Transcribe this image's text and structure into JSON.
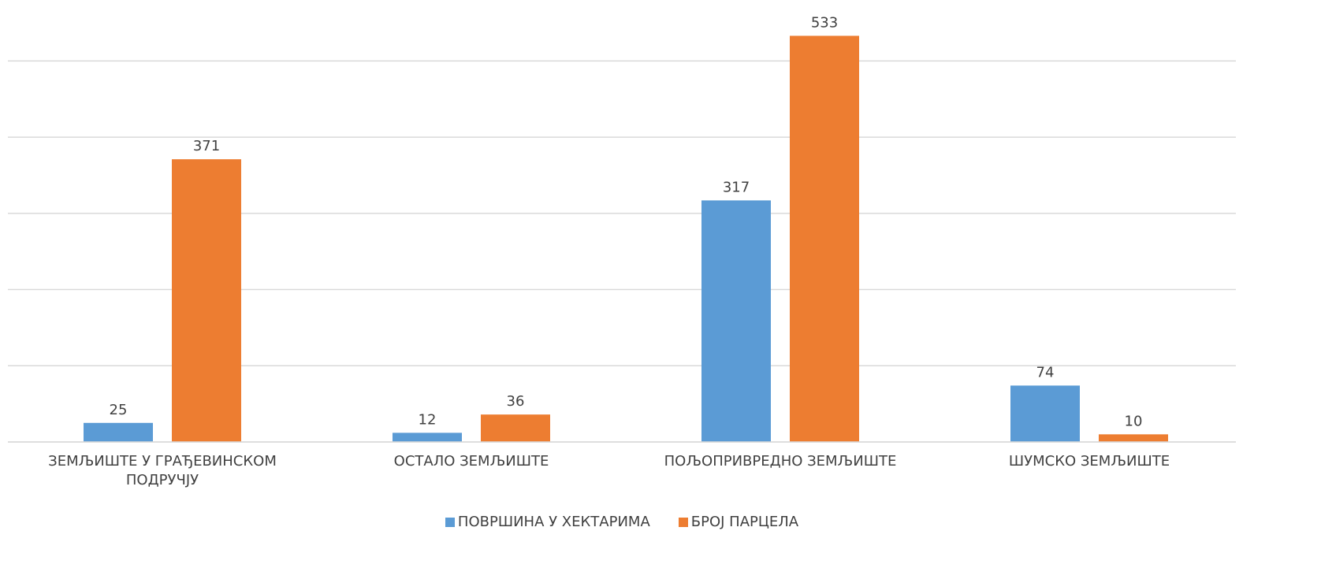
{
  "chart_data": {
    "type": "bar",
    "categories": [
      "ЗЕМЉИШТЕ У ГРАЂЕВИНСКОМ ПОДРУЧЈУ",
      "ОСТАЛО ЗЕМЉИШТЕ",
      "ПОЉОПРИВРЕДНО ЗЕМЉИШТЕ",
      "ШУМСКО ЗЕМЉИШТЕ"
    ],
    "series": [
      {
        "name": "ПОВРШИНА У ХЕКТАРИМА",
        "color": "#5b9bd5",
        "values": [
          25,
          12,
          317,
          74
        ]
      },
      {
        "name": "БРОЈ ПАРЦЕЛА",
        "color": "#ed7d31",
        "values": [
          371,
          36,
          533,
          10
        ]
      }
    ],
    "ylim": [
      0,
      580
    ],
    "yticks": [
      0,
      100,
      200,
      300,
      400,
      500
    ],
    "grid": true,
    "legend": "bottom"
  }
}
